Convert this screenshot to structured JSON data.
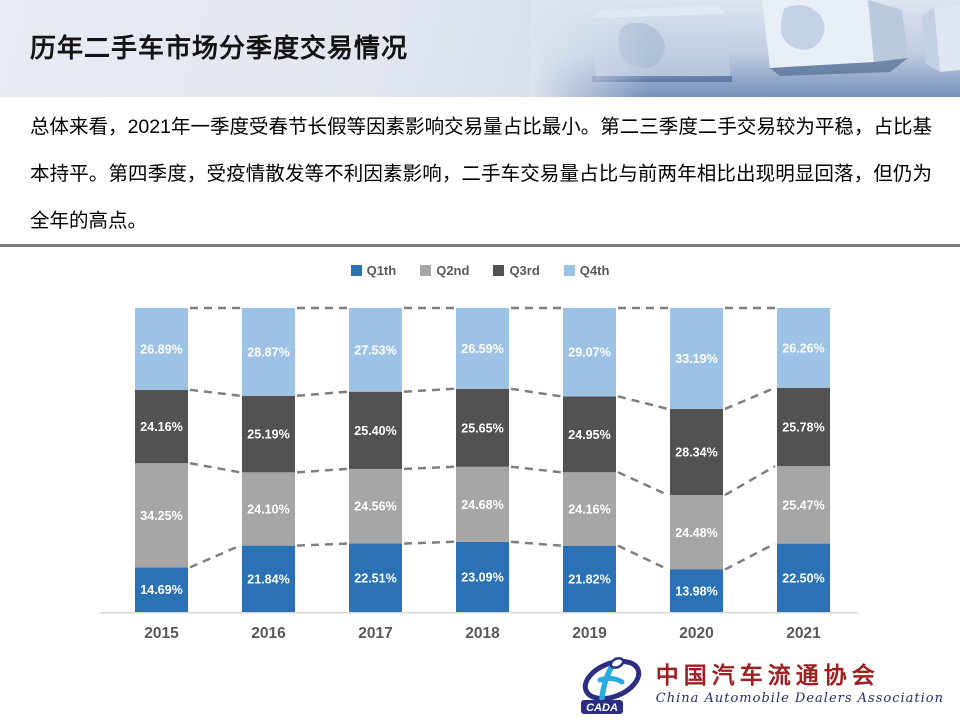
{
  "header": {
    "title": "历年二手车市场分季度交易情况"
  },
  "summary": {
    "text": "总体来看，2021年一季度受春节长假等因素影响交易量占比最小。第二三季度二手交易较为平稳，占比基本持平。第四季度，受疫情散发等不利因素影响，二手车交易量占比与前两年相比出现明显回落，但仍为全年的高点。"
  },
  "chart_data": {
    "type": "bar",
    "stacked": true,
    "percent_of_total": true,
    "title": "",
    "xlabel": "",
    "ylabel": "",
    "ylim": [
      0,
      100
    ],
    "grid": false,
    "legend_position": "top",
    "value_suffix": "%",
    "categories": [
      "2015",
      "2016",
      "2017",
      "2018",
      "2019",
      "2020",
      "2021"
    ],
    "series": [
      {
        "name": "Q1th",
        "color": "#2a72b5",
        "values": [
          14.69,
          21.84,
          22.51,
          23.09,
          21.82,
          13.98,
          22.5
        ]
      },
      {
        "name": "Q2nd",
        "color": "#a6a6a6",
        "values": [
          34.25,
          24.1,
          24.56,
          24.68,
          24.16,
          24.48,
          25.47
        ]
      },
      {
        "name": "Q3rd",
        "color": "#525252",
        "values": [
          24.16,
          25.19,
          25.4,
          25.65,
          24.95,
          28.34,
          25.78
        ]
      },
      {
        "name": "Q4th",
        "color": "#9cc2e5",
        "values": [
          26.89,
          28.87,
          27.53,
          26.59,
          29.07,
          33.19,
          26.26
        ]
      }
    ]
  },
  "colors": {
    "axis_label": "#595959",
    "connector": "#7f7f7f",
    "baseline": "#d9d9d9",
    "bar_label": "#ffffff"
  },
  "footer": {
    "logo_abbr": "CADA",
    "logo_cn": "中国汽车流通协会",
    "logo_en": "China Automobile Dealers Association"
  }
}
